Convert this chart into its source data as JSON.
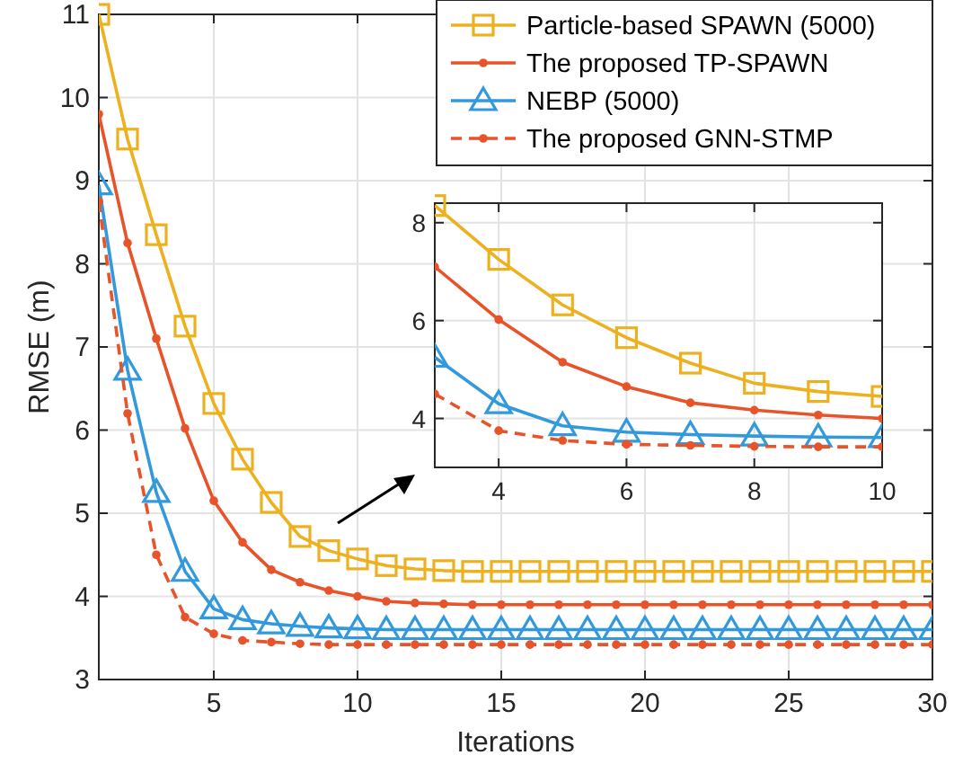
{
  "chart_data": [
    {
      "type": "line",
      "xlabel": "Iterations",
      "ylabel": "RMSE (m)",
      "x": [
        1,
        2,
        3,
        4,
        5,
        6,
        7,
        8,
        9,
        10,
        11,
        12,
        13,
        14,
        15,
        16,
        17,
        18,
        19,
        20,
        21,
        22,
        23,
        24,
        25,
        26,
        27,
        28,
        29,
        30
      ],
      "xlim": [
        1,
        30
      ],
      "ylim": [
        3,
        11
      ],
      "xticks": [
        5,
        10,
        15,
        20,
        25,
        30
      ],
      "yticks": [
        3,
        4,
        5,
        6,
        7,
        8,
        9,
        10,
        11
      ],
      "grid": true,
      "legend": "top right",
      "series": [
        {
          "name": "Particle-based SPAWN (5000)",
          "color": "#edb120",
          "marker": "square",
          "line_style": "solid",
          "values": [
            11,
            9.5,
            8.35,
            7.25,
            6.32,
            5.65,
            5.13,
            4.72,
            4.55,
            4.45,
            4.37,
            4.33,
            4.31,
            4.3,
            4.3,
            4.3,
            4.3,
            4.3,
            4.3,
            4.3,
            4.3,
            4.3,
            4.3,
            4.3,
            4.3,
            4.3,
            4.3,
            4.3,
            4.3,
            4.3
          ]
        },
        {
          "name": "The proposed TP-SPAWN",
          "color": "#e8532a",
          "marker": "circle",
          "line_style": "solid",
          "values": [
            9.8,
            8.25,
            7.1,
            6.02,
            5.15,
            4.65,
            4.32,
            4.17,
            4.07,
            4.0,
            3.94,
            3.92,
            3.91,
            3.9,
            3.9,
            3.9,
            3.9,
            3.9,
            3.9,
            3.9,
            3.9,
            3.9,
            3.9,
            3.9,
            3.9,
            3.9,
            3.9,
            3.9,
            3.9,
            3.9
          ]
        },
        {
          "name": "NEBP (5000)",
          "color": "#3399dd",
          "marker": "triangle",
          "line_style": "solid",
          "values": [
            8.95,
            6.72,
            5.25,
            4.3,
            3.85,
            3.72,
            3.67,
            3.64,
            3.62,
            3.61,
            3.6,
            3.6,
            3.6,
            3.6,
            3.6,
            3.6,
            3.6,
            3.6,
            3.6,
            3.6,
            3.6,
            3.6,
            3.6,
            3.6,
            3.6,
            3.6,
            3.6,
            3.6,
            3.6,
            3.6
          ]
        },
        {
          "name": "The proposed GNN-STMP",
          "color": "#e8532a",
          "marker": "circle",
          "line_style": "dashed",
          "values": [
            8.75,
            6.2,
            4.5,
            3.75,
            3.55,
            3.47,
            3.45,
            3.43,
            3.42,
            3.42,
            3.42,
            3.42,
            3.42,
            3.42,
            3.42,
            3.42,
            3.42,
            3.42,
            3.42,
            3.42,
            3.42,
            3.42,
            3.42,
            3.42,
            3.42,
            3.42,
            3.42,
            3.42,
            3.42,
            3.42
          ]
        }
      ]
    },
    {
      "type": "line",
      "x": [
        3,
        4,
        5,
        6,
        7,
        8,
        9,
        10
      ],
      "xlim": [
        3,
        10
      ],
      "ylim": [
        3,
        8.4
      ],
      "xticks": [
        4,
        6,
        8,
        10
      ],
      "yticks": [
        4,
        6,
        8
      ],
      "grid": true,
      "series": [
        {
          "color": "#edb120",
          "marker": "square",
          "line_style": "solid",
          "values": [
            8.35,
            7.25,
            6.32,
            5.65,
            5.13,
            4.72,
            4.55,
            4.45
          ]
        },
        {
          "color": "#e8532a",
          "marker": "circle",
          "line_style": "solid",
          "values": [
            7.1,
            6.02,
            5.15,
            4.65,
            4.32,
            4.17,
            4.07,
            4.0
          ]
        },
        {
          "color": "#3399dd",
          "marker": "triangle",
          "line_style": "solid",
          "values": [
            5.25,
            4.3,
            3.85,
            3.72,
            3.67,
            3.64,
            3.62,
            3.61
          ]
        },
        {
          "color": "#e8532a",
          "marker": "circle",
          "line_style": "dashed",
          "values": [
            4.5,
            3.75,
            3.55,
            3.47,
            3.45,
            3.43,
            3.42,
            3.42
          ]
        }
      ]
    }
  ]
}
